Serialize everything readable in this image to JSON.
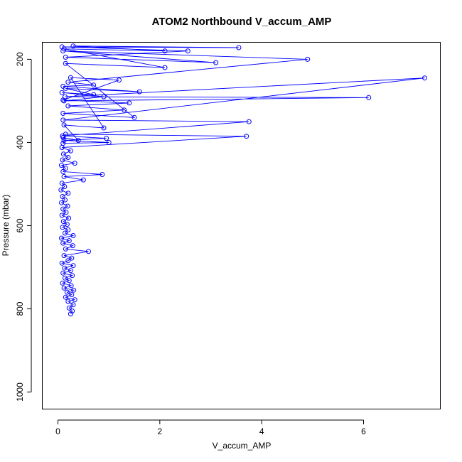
{
  "chart_data": {
    "type": "line",
    "title": "ATOM2 Northbound V_accum_AMP",
    "xlabel": "V_accum_AMP",
    "ylabel": "Pressure (mbar)",
    "xlim": [
      -0.3,
      7.5
    ],
    "ylim": [
      1040,
      160
    ],
    "y_reversed": true,
    "x_ticks": [
      0,
      2,
      4,
      6
    ],
    "y_ticks": [
      200,
      400,
      600,
      800,
      1000
    ],
    "grid": false,
    "marker": "open-circle",
    "color": "#0000ff",
    "series": [
      {
        "points": [
          [
            0.25,
            812
          ],
          [
            0.28,
            805
          ],
          [
            0.22,
            798
          ],
          [
            0.3,
            790
          ],
          [
            0.2,
            782
          ],
          [
            0.33,
            778
          ],
          [
            0.15,
            772
          ],
          [
            0.27,
            766
          ],
          [
            0.18,
            760
          ],
          [
            0.31,
            755
          ],
          [
            0.12,
            750
          ],
          [
            0.26,
            744
          ],
          [
            0.09,
            738
          ],
          [
            0.22,
            732
          ],
          [
            0.14,
            726
          ],
          [
            0.28,
            720
          ],
          [
            0.1,
            714
          ],
          [
            0.25,
            708
          ],
          [
            0.13,
            702
          ],
          [
            0.3,
            696
          ],
          [
            0.08,
            690
          ],
          [
            0.2,
            684
          ],
          [
            0.27,
            678
          ],
          [
            0.12,
            672
          ],
          [
            0.6,
            662
          ],
          [
            0.15,
            656
          ],
          [
            0.29,
            648
          ],
          [
            0.1,
            642
          ],
          [
            0.22,
            636
          ],
          [
            0.07,
            630
          ],
          [
            0.3,
            624
          ],
          [
            0.14,
            618
          ],
          [
            0.2,
            610
          ],
          [
            0.09,
            604
          ],
          [
            0.18,
            597
          ],
          [
            0.11,
            590
          ],
          [
            0.21,
            582
          ],
          [
            0.08,
            575
          ],
          [
            0.16,
            568
          ],
          [
            0.1,
            560
          ],
          [
            0.19,
            553
          ],
          [
            0.07,
            545
          ],
          [
            0.14,
            538
          ],
          [
            0.09,
            530
          ],
          [
            0.2,
            522
          ],
          [
            0.06,
            514
          ],
          [
            0.13,
            506
          ],
          [
            0.08,
            498
          ],
          [
            0.5,
            490
          ],
          [
            0.12,
            482
          ],
          [
            0.87,
            477
          ],
          [
            0.1,
            470
          ],
          [
            0.15,
            462
          ],
          [
            0.07,
            455
          ],
          [
            0.33,
            450
          ],
          [
            0.09,
            442
          ],
          [
            0.2,
            436
          ],
          [
            0.11,
            428
          ],
          [
            0.25,
            420
          ],
          [
            0.08,
            412
          ],
          [
            3.7,
            385
          ],
          [
            0.15,
            380
          ],
          [
            0.1,
            402
          ],
          [
            1.0,
            400
          ],
          [
            0.12,
            395
          ],
          [
            0.95,
            390
          ],
          [
            0.09,
            384
          ],
          [
            3.75,
            350
          ],
          [
            0.1,
            346
          ],
          [
            7.2,
            245
          ],
          [
            0.14,
            290
          ],
          [
            6.1,
            292
          ],
          [
            0.12,
            300
          ],
          [
            0.9,
            290
          ],
          [
            0.08,
            280
          ],
          [
            0.7,
            285
          ],
          [
            0.15,
            270
          ],
          [
            1.6,
            278
          ],
          [
            0.1,
            265
          ],
          [
            0.7,
            262
          ],
          [
            0.2,
            255
          ],
          [
            4.9,
            200
          ],
          [
            0.1,
            180
          ],
          [
            3.1,
            208
          ],
          [
            0.15,
            195
          ],
          [
            2.55,
            180
          ],
          [
            0.08,
            170
          ],
          [
            3.55,
            172
          ],
          [
            0.3,
            168
          ],
          [
            2.1,
            180
          ],
          [
            0.12,
            175
          ],
          [
            2.1,
            220
          ],
          [
            0.15,
            210
          ],
          [
            1.5,
            340
          ],
          [
            0.1,
            330
          ],
          [
            1.3,
            322
          ],
          [
            0.2,
            312
          ],
          [
            1.4,
            305
          ],
          [
            0.1,
            298
          ],
          [
            1.2,
            250
          ],
          [
            0.25,
            244
          ],
          [
            0.9,
            365
          ],
          [
            0.12,
            358
          ],
          [
            0.4,
            395
          ],
          [
            0.1,
            388
          ]
        ]
      }
    ]
  }
}
